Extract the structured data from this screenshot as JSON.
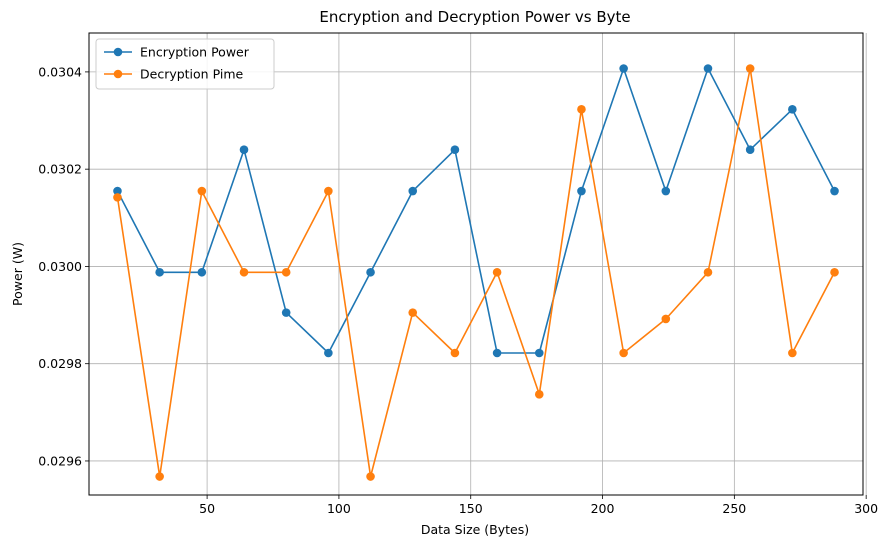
{
  "chart_data": {
    "type": "line",
    "title": "Encryption and Decryption Power vs Byte",
    "xlabel": "Data Size (Bytes)",
    "ylabel": "Power (W)",
    "xlim": [
      5.2,
      298.8
    ],
    "ylim": [
      0.02953,
      0.03048
    ],
    "xticks": [
      50,
      100,
      150,
      200,
      250,
      300
    ],
    "xtick_labels": [
      "50",
      "100",
      "150",
      "200",
      "250",
      "300"
    ],
    "yticks": [
      0.0296,
      0.0298,
      0.03,
      0.0302,
      0.0304
    ],
    "ytick_labels": [
      "0.0296",
      "0.0298",
      "0.0300",
      "0.0302",
      "0.0304"
    ],
    "grid": true,
    "legend_position": "upper-left",
    "x": [
      16,
      32,
      48,
      64,
      80,
      96,
      112,
      128,
      144,
      160,
      176,
      192,
      208,
      224,
      240,
      256,
      272,
      288
    ],
    "series": [
      {
        "name": "Encryption Power",
        "color": "#1f77b4",
        "values": [
          0.030155,
          0.029988,
          0.029988,
          0.03024,
          0.029905,
          0.029822,
          0.029988,
          0.030155,
          0.03024,
          0.029822,
          0.029822,
          0.030155,
          0.030407,
          0.030155,
          0.030407,
          0.03024,
          0.030323,
          0.030155
        ]
      },
      {
        "name": "Decryption Pime",
        "color": "#ff7f0e",
        "values": [
          0.030142,
          0.029568,
          0.030155,
          0.029988,
          0.029988,
          0.030155,
          0.029568,
          0.029905,
          0.029822,
          0.029988,
          0.029737,
          0.030323,
          0.029822,
          0.029892,
          0.029988,
          0.030407,
          0.029822,
          0.029988
        ]
      }
    ]
  }
}
